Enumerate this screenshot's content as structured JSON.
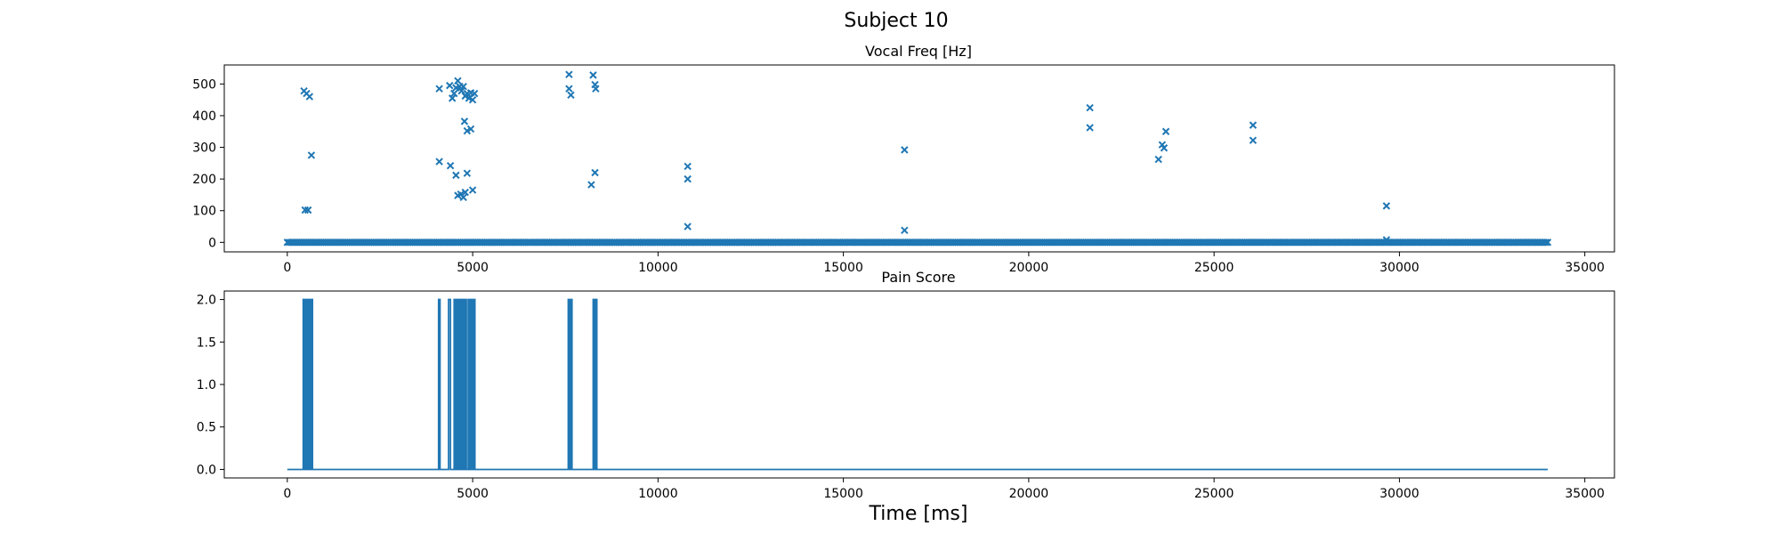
{
  "figure": {
    "suptitle": "Subject 10",
    "xlabel": "Time [ms]",
    "colors": {
      "series": "#1f77b4",
      "axes": "#000000",
      "background": "#ffffff"
    }
  },
  "chart_data": [
    {
      "type": "scatter",
      "title": "Vocal Freq [Hz]",
      "xlabel": "",
      "ylabel": "",
      "marker": "x",
      "xlim": [
        -1700,
        35800
      ],
      "ylim": [
        -30,
        560
      ],
      "xticks": [
        0,
        5000,
        10000,
        15000,
        20000,
        25000,
        30000,
        35000
      ],
      "yticks": [
        0,
        100,
        200,
        300,
        400,
        500
      ],
      "grid": false,
      "baseline_zero": {
        "x_start": 0,
        "x_end": 34000,
        "step": 50,
        "y": 0
      },
      "points": [
        [
          450,
          478
        ],
        [
          520,
          470
        ],
        [
          600,
          460
        ],
        [
          650,
          275
        ],
        [
          480,
          102
        ],
        [
          560,
          102
        ],
        [
          4100,
          485
        ],
        [
          4100,
          255
        ],
        [
          4400,
          242
        ],
        [
          4550,
          212
        ],
        [
          4850,
          218
        ],
        [
          5000,
          165
        ],
        [
          4380,
          495
        ],
        [
          4450,
          455
        ],
        [
          4500,
          470
        ],
        [
          4550,
          488
        ],
        [
          4600,
          510
        ],
        [
          4650,
          492
        ],
        [
          4700,
          478
        ],
        [
          4750,
          492
        ],
        [
          4800,
          462
        ],
        [
          4850,
          470
        ],
        [
          4900,
          455
        ],
        [
          4950,
          472
        ],
        [
          5000,
          450
        ],
        [
          5050,
          470
        ],
        [
          4780,
          382
        ],
        [
          4850,
          352
        ],
        [
          4950,
          358
        ],
        [
          4600,
          148
        ],
        [
          4680,
          152
        ],
        [
          4750,
          142
        ],
        [
          4800,
          158
        ],
        [
          7600,
          530
        ],
        [
          7600,
          485
        ],
        [
          7650,
          465
        ],
        [
          8250,
          528
        ],
        [
          8300,
          498
        ],
        [
          8320,
          485
        ],
        [
          8300,
          220
        ],
        [
          8200,
          182
        ],
        [
          10800,
          240
        ],
        [
          10800,
          200
        ],
        [
          10800,
          50
        ],
        [
          16650,
          292
        ],
        [
          16650,
          38
        ],
        [
          21650,
          425
        ],
        [
          21650,
          362
        ],
        [
          23500,
          262
        ],
        [
          23600,
          308
        ],
        [
          23650,
          298
        ],
        [
          23700,
          350
        ],
        [
          26050,
          370
        ],
        [
          26050,
          322
        ],
        [
          29650,
          115
        ],
        [
          29650,
          8
        ]
      ]
    },
    {
      "type": "line",
      "title": "Pain Score",
      "xlabel": "Time [ms]",
      "ylabel": "",
      "xlim": [
        -1700,
        35800
      ],
      "ylim": [
        -0.1,
        2.1
      ],
      "xticks": [
        0,
        5000,
        10000,
        15000,
        20000,
        25000,
        30000,
        35000
      ],
      "yticks": [
        0.0,
        0.5,
        1.0,
        1.5,
        2.0
      ],
      "ytick_labels": [
        "0.0",
        "0.5",
        "1.0",
        "1.5",
        "2.0"
      ],
      "grid": false,
      "x_end": 34000,
      "high_intervals": [
        [
          430,
          470
        ],
        [
          500,
          540
        ],
        [
          580,
          620
        ],
        [
          640,
          680
        ],
        [
          4080,
          4120
        ],
        [
          4350,
          4400
        ],
        [
          4500,
          4540
        ],
        [
          4580,
          4620
        ],
        [
          4650,
          4690
        ],
        [
          4730,
          4770
        ],
        [
          4790,
          4830
        ],
        [
          4880,
          4920
        ],
        [
          4960,
          5000
        ],
        [
          5020,
          5060
        ],
        [
          7580,
          7620
        ],
        [
          7640,
          7680
        ],
        [
          8250,
          8290
        ],
        [
          8310,
          8350
        ]
      ],
      "high_value": 2.0,
      "low_value": 0.0
    }
  ]
}
